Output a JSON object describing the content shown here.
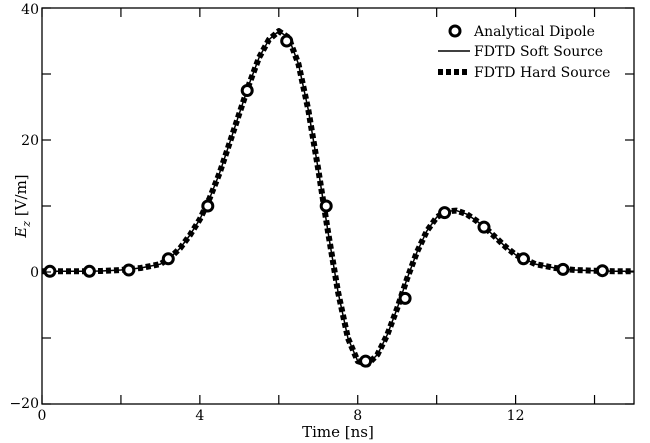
{
  "chart_data": {
    "type": "line",
    "title": "",
    "xlabel": "Time [ns]",
    "ylabel_main": "E",
    "ylabel_sub": "z",
    "ylabel_unit": " [V/m]",
    "xlim": [
      0,
      15
    ],
    "ylim": [
      -20,
      40
    ],
    "x_ticks": [
      0,
      4,
      8,
      12
    ],
    "y_ticks": [
      -20,
      0,
      20,
      40
    ],
    "x_minor_ticks": [
      2,
      6,
      10,
      14
    ],
    "y_minor_ticks": [
      -10,
      10,
      30
    ],
    "grid": false,
    "legend_position": "top-right",
    "series": [
      {
        "name": "Analytical Dipole",
        "style": "open-circles",
        "x": [
          0.2,
          1.2,
          2.2,
          3.2,
          4.2,
          5.2,
          6.2,
          7.2,
          8.2,
          9.2,
          10.2,
          11.2,
          12.2,
          13.2,
          14.2
        ],
        "y": [
          0.1,
          0.1,
          0.3,
          2.0,
          10.0,
          27.5,
          35.0,
          10.0,
          -13.5,
          -4.0,
          9.0,
          6.8,
          2.0,
          0.4,
          0.2
        ]
      },
      {
        "name": "FDTD Soft Source",
        "style": "solid",
        "x": [
          0,
          0.5,
          1,
          1.5,
          2,
          2.5,
          3,
          3.25,
          3.5,
          3.75,
          4,
          4.25,
          4.5,
          4.75,
          5,
          5.25,
          5.5,
          5.75,
          6,
          6.25,
          6.5,
          6.75,
          7,
          7.25,
          7.5,
          7.75,
          8,
          8.25,
          8.5,
          8.75,
          9,
          9.25,
          9.5,
          9.75,
          10,
          10.25,
          10.5,
          10.75,
          11,
          11.25,
          11.5,
          11.75,
          12,
          12.5,
          13,
          13.5,
          14,
          14.5,
          15
        ],
        "y": [
          0.1,
          0.1,
          0.1,
          0.15,
          0.3,
          0.6,
          1.2,
          2.2,
          3.6,
          5.6,
          8.0,
          11.2,
          15.0,
          19.5,
          24.0,
          28.5,
          32.5,
          35.2,
          36.5,
          35.5,
          31.5,
          24.5,
          15.5,
          6.0,
          -3.0,
          -10.0,
          -13.5,
          -14.0,
          -12.5,
          -9.5,
          -5.5,
          -1.0,
          3.0,
          6.2,
          8.3,
          9.2,
          9.3,
          8.8,
          7.8,
          6.6,
          5.2,
          3.8,
          2.6,
          1.2,
          0.6,
          0.3,
          0.2,
          0.1,
          0.1
        ]
      },
      {
        "name": "FDTD Hard Source",
        "style": "thick-dashed",
        "x": [
          0,
          0.5,
          1,
          1.5,
          2,
          2.5,
          3,
          3.25,
          3.5,
          3.75,
          4,
          4.25,
          4.5,
          4.75,
          5,
          5.25,
          5.5,
          5.75,
          6,
          6.25,
          6.5,
          6.75,
          7,
          7.25,
          7.5,
          7.75,
          8,
          8.25,
          8.5,
          8.75,
          9,
          9.25,
          9.5,
          9.75,
          10,
          10.25,
          10.5,
          10.75,
          11,
          11.25,
          11.5,
          11.75,
          12,
          12.5,
          13,
          13.5,
          14,
          14.5,
          15
        ],
        "y": [
          0.1,
          0.1,
          0.1,
          0.15,
          0.3,
          0.6,
          1.2,
          2.2,
          3.6,
          5.6,
          8.0,
          11.2,
          15.0,
          19.5,
          24.0,
          28.5,
          32.5,
          35.2,
          36.5,
          35.5,
          31.5,
          24.5,
          15.5,
          6.0,
          -3.0,
          -10.0,
          -13.5,
          -14.0,
          -12.5,
          -9.5,
          -5.5,
          -1.0,
          3.0,
          6.2,
          8.3,
          9.2,
          9.3,
          8.8,
          7.8,
          6.6,
          5.2,
          3.8,
          2.6,
          1.2,
          0.6,
          0.3,
          0.2,
          0.1,
          0.1
        ]
      }
    ]
  }
}
